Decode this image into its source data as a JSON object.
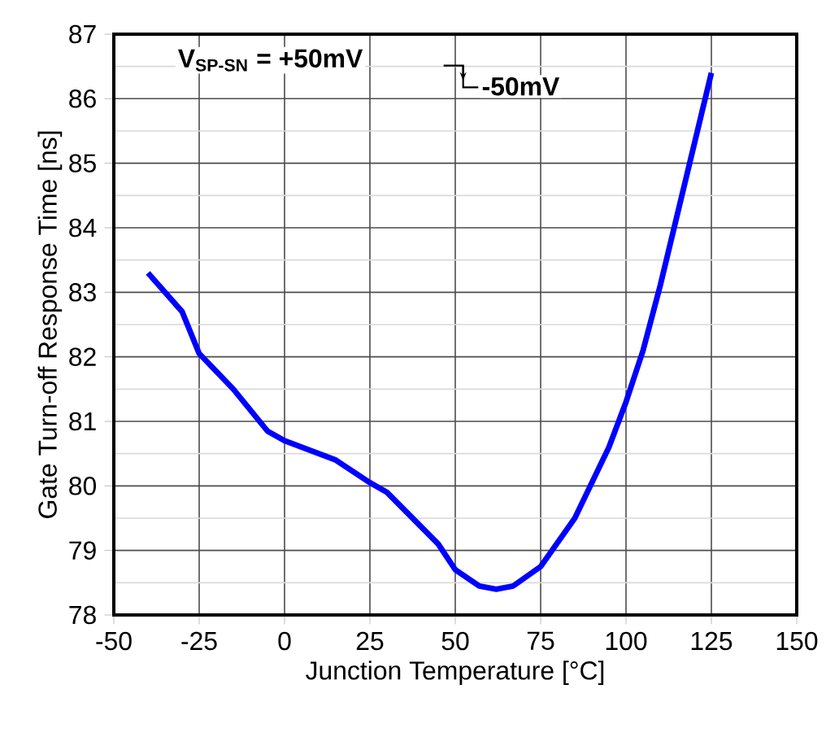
{
  "chart_data": {
    "type": "line",
    "xlabel": "Junction Temperature [°C]",
    "ylabel": "Gate Turn-off Response Time [ns]",
    "annotations": [
      "V$_{SP-SN}$ = +50mV",
      "-50mV"
    ],
    "x": [
      -40,
      -30,
      -25,
      -15,
      -5,
      0,
      15,
      25,
      30,
      45,
      50,
      57,
      62,
      67,
      75,
      85,
      95,
      100,
      105,
      110,
      115,
      120,
      125
    ],
    "series": [
      {
        "color": "#0000ff",
        "values": [
          83.3,
          82.7,
          82.05,
          81.5,
          80.85,
          80.7,
          80.4,
          80.05,
          79.9,
          79.1,
          78.7,
          78.45,
          78.4,
          78.45,
          78.75,
          79.5,
          80.6,
          81.3,
          82.1,
          83.1,
          84.2,
          85.3,
          86.4
        ]
      }
    ],
    "xlim": [
      -50,
      150
    ],
    "ylim": [
      78,
      87
    ],
    "xticks": [
      -50,
      -25,
      0,
      25,
      50,
      75,
      100,
      125,
      150
    ],
    "yticks": [
      78,
      79,
      80,
      81,
      82,
      83,
      84,
      85,
      86,
      87
    ],
    "grid": true,
    "marker": "none",
    "line_style": "solid"
  }
}
